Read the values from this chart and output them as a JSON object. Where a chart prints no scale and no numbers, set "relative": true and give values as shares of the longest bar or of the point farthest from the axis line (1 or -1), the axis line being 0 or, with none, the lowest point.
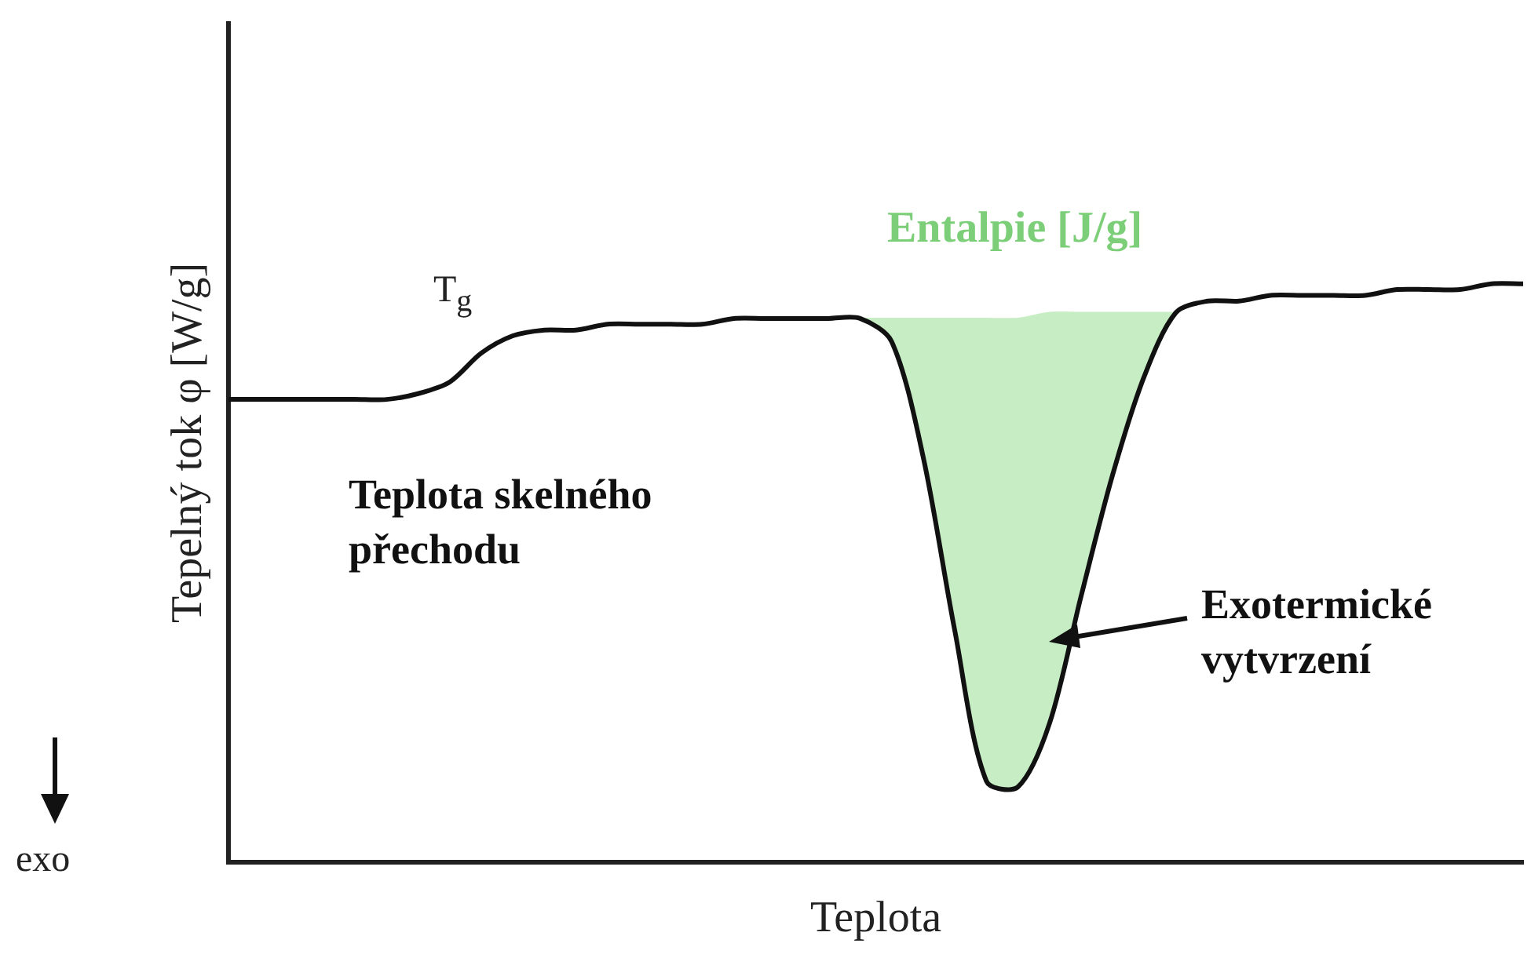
{
  "chart_data": {
    "type": "line",
    "relative": true,
    "xlabel": "Teplota",
    "ylabel": "Tepelný tok φ [W/g]",
    "categories": [
      null,
      null,
      null,
      null,
      null,
      null,
      null,
      null,
      null,
      null,
      null,
      null,
      null,
      null,
      null,
      null,
      null,
      null,
      null,
      null,
      null,
      null,
      null,
      null,
      null,
      null,
      null,
      null,
      null,
      null,
      null,
      null,
      null,
      null,
      null,
      null,
      null,
      null,
      null,
      null,
      null,
      null
    ],
    "series": [
      {
        "color": "#111111",
        "values": [
          0.8,
          0.8,
          0.8,
          0.8,
          0.8,
          0.8,
          0.81,
          0.83,
          0.88,
          0.91,
          0.92,
          0.92,
          0.93,
          0.93,
          0.93,
          0.93,
          0.94,
          0.94,
          0.94,
          0.94,
          0.94,
          0.9,
          0.7,
          0.4,
          0.14,
          0.13,
          0.24,
          0.46,
          0.67,
          0.84,
          0.95,
          0.97,
          0.97,
          0.98,
          0.98,
          0.98,
          0.98,
          0.99,
          0.99,
          0.99,
          1.0,
          1.0
        ]
      },
      {
        "type": "area",
        "color": "#c6edc3",
        "values": [
          null,
          null,
          null,
          null,
          null,
          null,
          null,
          null,
          null,
          null,
          null,
          null,
          null,
          null,
          null,
          null,
          null,
          null,
          null,
          null,
          0.94,
          0.94,
          0.94,
          0.94,
          0.94,
          0.94,
          0.95,
          0.95,
          0.95,
          0.95,
          0.95,
          null,
          null,
          null,
          null,
          null,
          null,
          null,
          null,
          null,
          null,
          null
        ]
      }
    ],
    "annotations": [
      "T$_{g}$",
      "Entalpie [J/g]",
      "Teplota skelného přechodu",
      "Exotermické vytvrzení",
      "exo"
    ],
    "legend": false,
    "grid": false
  }
}
